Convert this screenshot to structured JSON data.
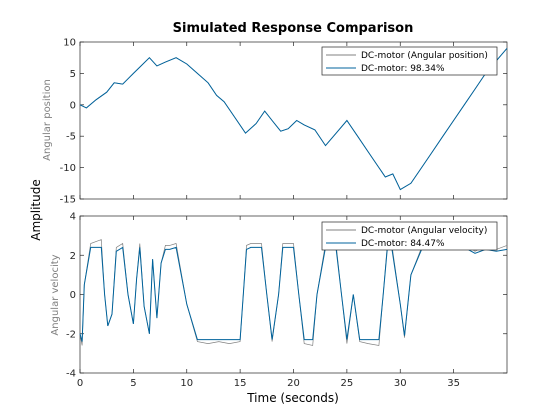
{
  "chart_data": [
    {
      "type": "line",
      "title": "Simulated Response Comparison",
      "xlabel": "",
      "ylabel": "Angular position",
      "xlim": [
        0,
        40
      ],
      "ylim": [
        -15,
        10
      ],
      "xticks": [
        0,
        5,
        10,
        15,
        20,
        25,
        30,
        35
      ],
      "yticks": [
        -15,
        -10,
        -5,
        0,
        5,
        10
      ],
      "grid": false,
      "legend_position": "top-right",
      "series": [
        {
          "name": "DC-motor (Angular position)",
          "color": "#808080",
          "x": [
            0,
            0.6,
            1.5,
            2.5,
            3.2,
            4.0,
            5.0,
            5.6,
            6.5,
            7.2,
            8.0,
            9.0,
            10.0,
            11.0,
            12.0,
            12.8,
            13.5,
            14.5,
            15.5,
            16.5,
            17.3,
            18.0,
            18.8,
            19.5,
            20.3,
            21.0,
            22.0,
            23.0,
            24.0,
            25.0,
            26.0,
            27.0,
            28.0,
            28.6,
            29.3,
            30.0,
            31.0,
            32.0,
            33.0,
            34.0,
            35.0,
            36.0,
            37.0,
            38.0,
            39.0,
            40.0
          ],
          "y": [
            0,
            -0.5,
            0.8,
            2.0,
            3.5,
            3.3,
            5.0,
            6.0,
            7.5,
            6.2,
            6.8,
            7.5,
            6.5,
            5.0,
            3.5,
            1.5,
            0.5,
            -2.0,
            -4.5,
            -3.0,
            -1.0,
            -2.5,
            -4.2,
            -3.8,
            -2.5,
            -3.2,
            -4.0,
            -6.5,
            -4.5,
            -2.5,
            -5.0,
            -7.5,
            -10.0,
            -11.5,
            -11.0,
            -13.5,
            -12.5,
            -10.0,
            -7.5,
            -5.0,
            -2.5,
            0,
            2.5,
            5.0,
            7.0,
            9.0
          ]
        },
        {
          "name": "DC-motor: 98.34%",
          "color": "#00639c",
          "x": [
            0,
            0.6,
            1.5,
            2.5,
            3.2,
            4.0,
            5.0,
            5.6,
            6.5,
            7.2,
            8.0,
            9.0,
            10.0,
            11.0,
            12.0,
            12.8,
            13.5,
            14.5,
            15.5,
            16.5,
            17.3,
            18.0,
            18.8,
            19.5,
            20.3,
            21.0,
            22.0,
            23.0,
            24.0,
            25.0,
            26.0,
            27.0,
            28.0,
            28.6,
            29.3,
            30.0,
            31.0,
            32.0,
            33.0,
            34.0,
            35.0,
            36.0,
            37.0,
            38.0,
            39.0,
            40.0
          ],
          "y": [
            0,
            -0.5,
            0.8,
            2.0,
            3.5,
            3.3,
            5.0,
            6.0,
            7.5,
            6.2,
            6.8,
            7.5,
            6.5,
            5.0,
            3.5,
            1.5,
            0.5,
            -2.0,
            -4.5,
            -3.0,
            -1.0,
            -2.5,
            -4.2,
            -3.8,
            -2.5,
            -3.2,
            -4.0,
            -6.5,
            -4.5,
            -2.5,
            -5.0,
            -7.5,
            -10.0,
            -11.5,
            -11.0,
            -13.5,
            -12.5,
            -10.0,
            -7.5,
            -5.0,
            -2.5,
            0,
            2.5,
            5.0,
            7.0,
            9.0
          ]
        }
      ]
    },
    {
      "type": "line",
      "title": "",
      "xlabel": "Time (seconds)",
      "ylabel": "Angular velocity",
      "xlim": [
        0,
        40
      ],
      "ylim": [
        -4,
        4
      ],
      "xticks": [
        0,
        5,
        10,
        15,
        20,
        25,
        30,
        35
      ],
      "yticks": [
        -4,
        -2,
        0,
        2,
        4
      ],
      "grid": false,
      "legend_position": "top-right",
      "series": [
        {
          "name": "DC-motor (Angular velocity)",
          "color": "#808080",
          "x": [
            0,
            0.2,
            0.4,
            1.0,
            2.0,
            2.3,
            2.6,
            3.0,
            3.4,
            4.0,
            4.5,
            5.0,
            5.3,
            5.6,
            6.0,
            6.5,
            6.8,
            7.2,
            7.6,
            8.0,
            8.4,
            9.0,
            10.0,
            11.0,
            12.0,
            13.0,
            14.0,
            15.0,
            15.3,
            15.6,
            16.0,
            17.0,
            17.5,
            18.0,
            18.6,
            19.0,
            20.0,
            20.5,
            21.0,
            21.8,
            22.2,
            23.0,
            24.0,
            24.5,
            25.0,
            25.6,
            26.2,
            27.0,
            28.0,
            28.4,
            28.8,
            29.2,
            30.0,
            30.4,
            31.0,
            32.0,
            33.0,
            34.0,
            35.0,
            36.0,
            37.0,
            38.0,
            39.0,
            40.0
          ],
          "y": [
            -2.0,
            -2.6,
            0.5,
            2.6,
            2.8,
            0,
            -1.6,
            -1.0,
            2.4,
            2.6,
            0,
            -1.5,
            0.8,
            2.6,
            -0.6,
            -2.0,
            1.8,
            -1.2,
            1.6,
            2.5,
            2.5,
            2.6,
            -0.5,
            -2.4,
            -2.5,
            -2.4,
            -2.5,
            -2.4,
            0,
            2.5,
            2.6,
            2.6,
            0,
            -2.4,
            0,
            2.6,
            2.6,
            0,
            -2.5,
            -2.6,
            0,
            2.6,
            2.5,
            0,
            -2.5,
            0,
            -2.4,
            -2.5,
            -2.6,
            0,
            2.6,
            2.6,
            -0.5,
            -2.2,
            1.0,
            2.4,
            2.5,
            2.6,
            2.5,
            2.6,
            2.2,
            2.5,
            2.3,
            2.5
          ]
        },
        {
          "name": "DC-motor: 84.47%",
          "color": "#00639c",
          "x": [
            0,
            0.2,
            0.4,
            1.0,
            2.0,
            2.3,
            2.6,
            3.0,
            3.4,
            4.0,
            4.5,
            5.0,
            5.3,
            5.6,
            6.0,
            6.5,
            6.8,
            7.2,
            7.6,
            8.0,
            8.4,
            9.0,
            10.0,
            11.0,
            12.0,
            13.0,
            14.0,
            15.0,
            15.3,
            15.6,
            16.0,
            17.0,
            17.5,
            18.0,
            18.6,
            19.0,
            20.0,
            20.5,
            21.0,
            21.8,
            22.2,
            23.0,
            24.0,
            24.5,
            25.0,
            25.6,
            26.2,
            27.0,
            28.0,
            28.4,
            28.8,
            29.2,
            30.0,
            30.4,
            31.0,
            32.0,
            33.0,
            34.0,
            35.0,
            36.0,
            37.0,
            38.0,
            39.0,
            40.0
          ],
          "y": [
            -2.0,
            -2.4,
            0.5,
            2.4,
            2.4,
            0,
            -1.6,
            -1.0,
            2.2,
            2.4,
            0,
            -1.5,
            0.8,
            2.4,
            -0.6,
            -2.0,
            1.8,
            -1.2,
            1.6,
            2.3,
            2.3,
            2.4,
            -0.5,
            -2.3,
            -2.3,
            -2.3,
            -2.3,
            -2.3,
            0,
            2.3,
            2.4,
            2.4,
            0,
            -2.3,
            0,
            2.4,
            2.4,
            0,
            -2.3,
            -2.3,
            0,
            2.4,
            2.3,
            0,
            -2.3,
            0,
            -2.3,
            -2.3,
            -2.3,
            0,
            2.4,
            2.4,
            -0.5,
            -2.1,
            1.0,
            2.3,
            2.3,
            2.4,
            2.3,
            2.4,
            2.1,
            2.3,
            2.2,
            2.3
          ]
        }
      ]
    }
  ],
  "figure": {
    "title": "Simulated Response Comparison",
    "shared_ylabel": "Amplitude",
    "shared_xlabel": "Time (seconds)"
  }
}
